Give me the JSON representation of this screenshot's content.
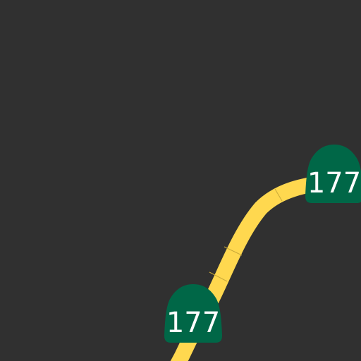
{
  "map": {
    "background_color": "#303030",
    "road": {
      "color": "#FFD84F",
      "casing_tick_color": "#C9A93A"
    },
    "shields": [
      {
        "route_number": "177",
        "color": "#006747",
        "text_color": "#ffffff"
      },
      {
        "route_number": "177",
        "color": "#006747",
        "text_color": "#ffffff"
      }
    ]
  }
}
